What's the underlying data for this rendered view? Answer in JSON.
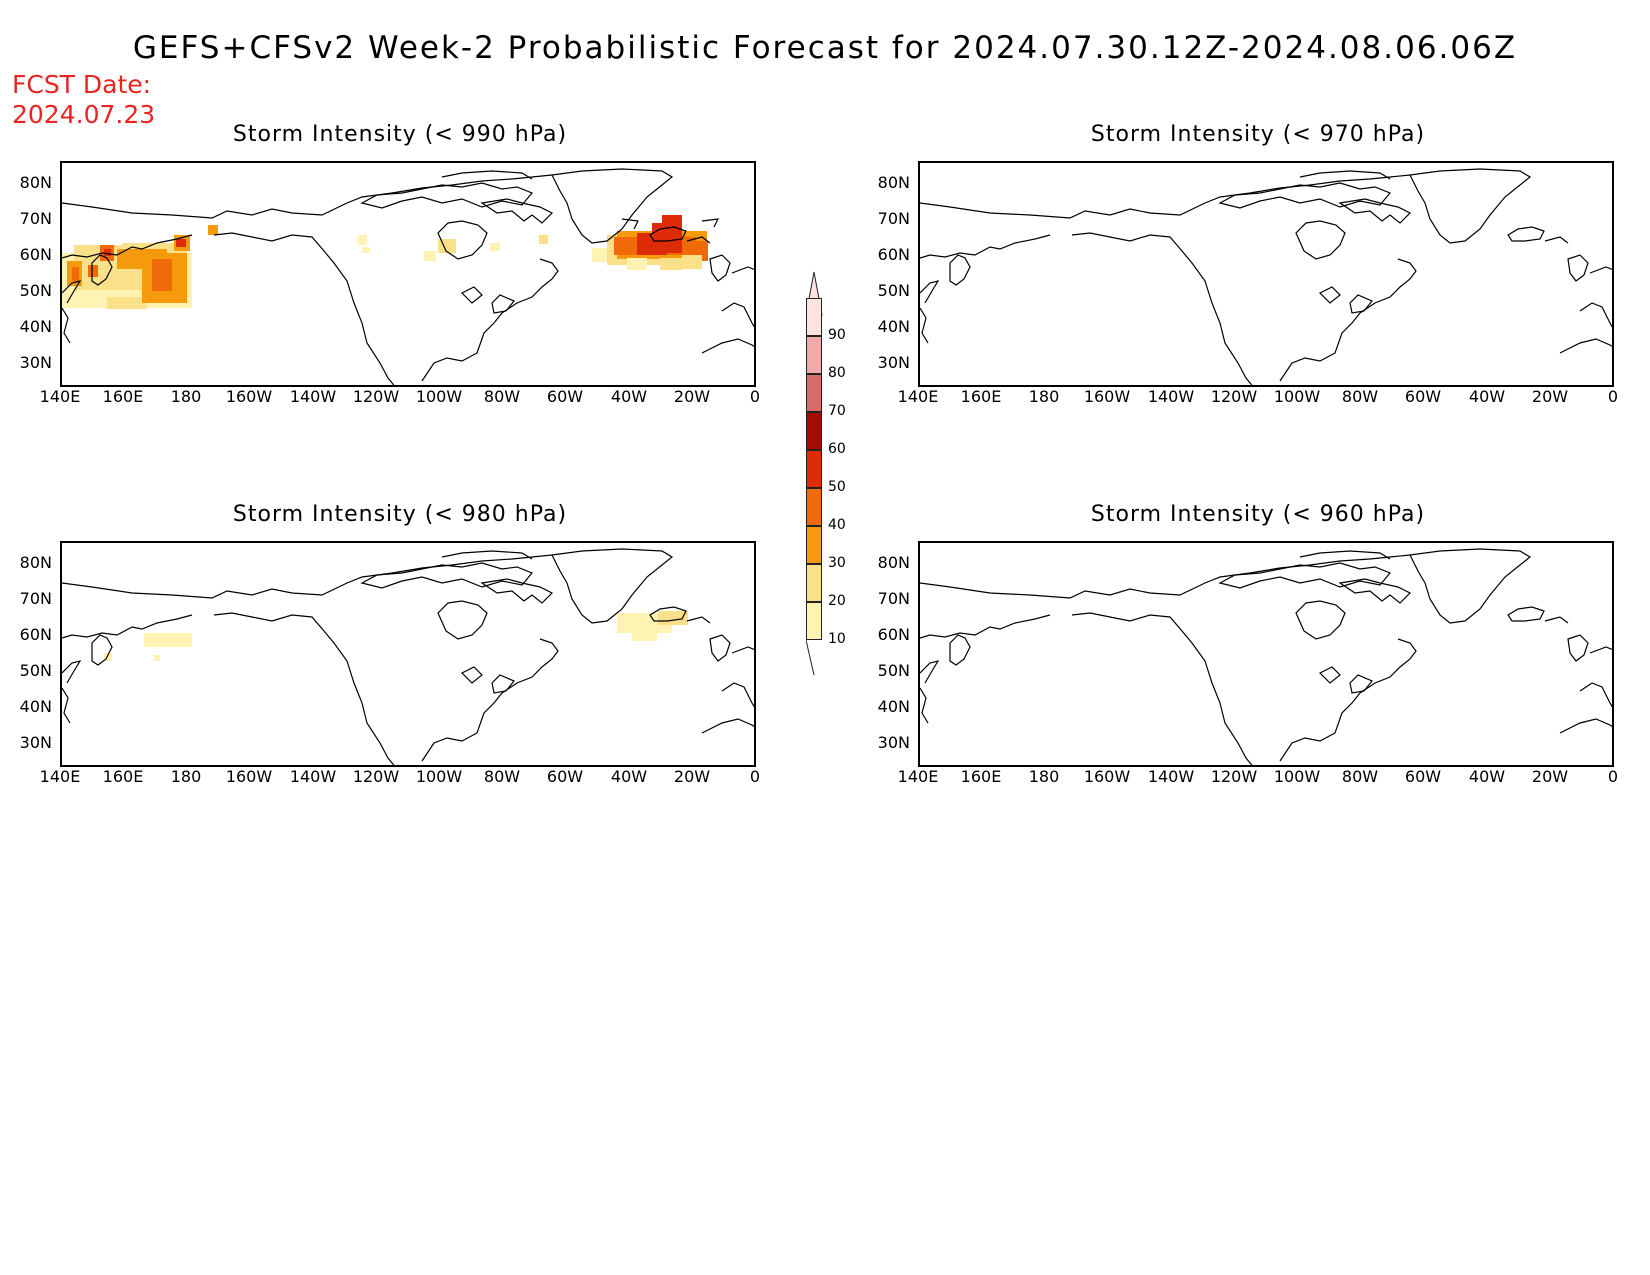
{
  "title": "GEFS+CFSv2 Week-2 Probabilistic Forecast for 2024.07.30.12Z-2024.08.06.06Z",
  "fcst_label": "FCST Date:",
  "fcst_date": "2024.07.23",
  "lat_labels": [
    "80N",
    "70N",
    "60N",
    "50N",
    "40N",
    "30N"
  ],
  "lon_labels": [
    "140E",
    "160E",
    "180",
    "160W",
    "140W",
    "120W",
    "100W",
    "80W",
    "60W",
    "40W",
    "20W",
    "0"
  ],
  "panels": [
    {
      "title": "Storm Intensity (< 990 hPa)",
      "has_data": true
    },
    {
      "title": "Storm Intensity (< 970 hPa)",
      "has_data": false
    },
    {
      "title": "Storm Intensity (< 980 hPa)",
      "has_data": true
    },
    {
      "title": "Storm Intensity (< 960 hPa)",
      "has_data": false
    }
  ],
  "colorbar": {
    "labels": [
      "10",
      "20",
      "30",
      "40",
      "50",
      "60",
      "70",
      "80",
      "90"
    ],
    "colors": [
      "#fff3b4",
      "#fbe08a",
      "#f59a0d",
      "#f06a0a",
      "#dd2b07",
      "#a30b05",
      "#d86b67",
      "#efaaaa",
      "#fde2e2"
    ]
  },
  "colors": {
    "title": "#000000",
    "fcst": "#e8251f",
    "coast": "#000000"
  }
}
